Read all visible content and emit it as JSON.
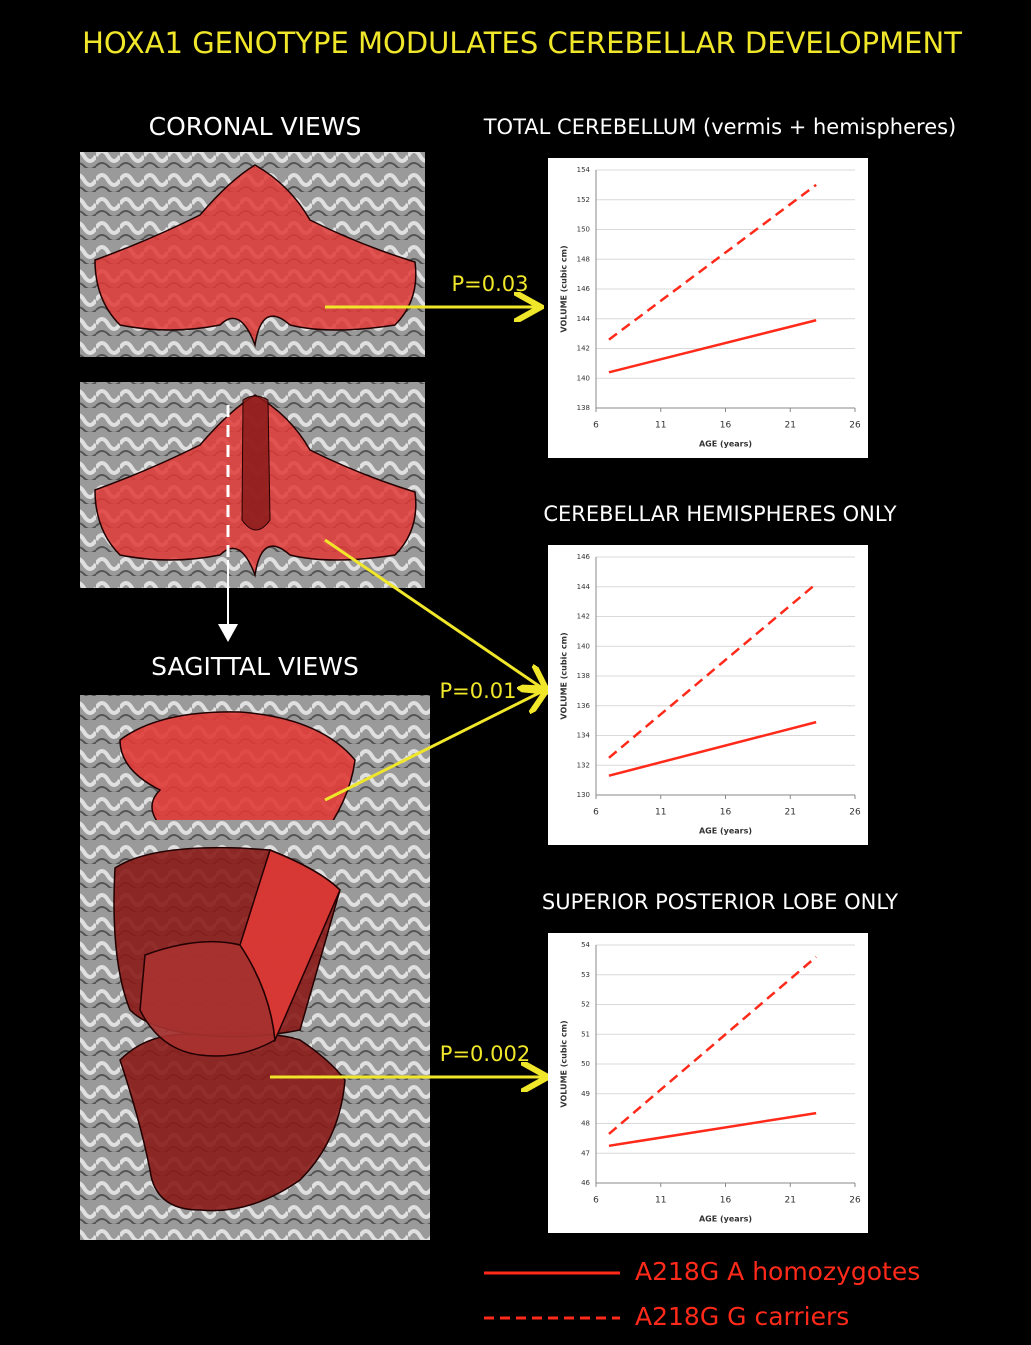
{
  "title": "HOXA1 GENOTYPE MODULATES CEREBELLAR DEVELOPMENT",
  "view_labels": [
    "CORONAL VIEWS",
    "SAGITTAL VIEWS"
  ],
  "legend": [
    {
      "name": "A218G A homozygotes",
      "color": "#ff2a1a",
      "dashed": false
    },
    {
      "name": "A218G G carriers",
      "color": "#ff2a1a",
      "dashed": true
    }
  ],
  "chart_data": [
    {
      "type": "line",
      "title": "TOTAL CEREBELLUM (vermis + hemispheres)",
      "annotation": "P=0.03",
      "x_label": "AGE (years)",
      "y_label": "VOLUME (cubic cm)",
      "x": [
        7,
        23
      ],
      "xlim": [
        6,
        26
      ],
      "xticks": [
        6,
        11,
        16,
        21,
        26
      ],
      "ylim": [
        138,
        154
      ],
      "yticks": [
        138,
        140,
        142,
        144,
        146,
        148,
        150,
        152,
        154
      ],
      "grid": true,
      "series": [
        {
          "color": "#ff2a1a",
          "dashed": false,
          "values": [
            140.4,
            143.9
          ]
        },
        {
          "color": "#ff2a1a",
          "dashed": true,
          "values": [
            142.6,
            153
          ]
        }
      ]
    },
    {
      "type": "line",
      "title": "CEREBELLAR HEMISPHERES ONLY",
      "annotation": "P=0.01",
      "x_label": "AGE (years)",
      "y_label": "VOLUME (cubic cm)",
      "x": [
        7,
        23
      ],
      "xlim": [
        6,
        26
      ],
      "xticks": [
        6,
        11,
        16,
        21,
        26
      ],
      "ylim": [
        130,
        146
      ],
      "yticks": [
        130,
        132,
        134,
        136,
        138,
        140,
        142,
        144,
        146
      ],
      "grid": true,
      "series": [
        {
          "color": "#ff2a1a",
          "dashed": false,
          "values": [
            131.3,
            134.9
          ]
        },
        {
          "color": "#ff2a1a",
          "dashed": true,
          "values": [
            132.5,
            144.2
          ]
        }
      ]
    },
    {
      "type": "line",
      "title": "SUPERIOR POSTERIOR LOBE ONLY",
      "annotation": "P=0.002",
      "x_label": "AGE (years)",
      "y_label": "VOLUME (cubic cm)",
      "x": [
        7,
        23
      ],
      "xlim": [
        6,
        26
      ],
      "xticks": [
        6,
        11,
        16,
        21,
        26
      ],
      "ylim": [
        46,
        54
      ],
      "yticks": [
        46,
        47,
        48,
        49,
        50,
        51,
        52,
        53,
        54
      ],
      "grid": true,
      "series": [
        {
          "color": "#ff2a1a",
          "dashed": false,
          "values": [
            47.25,
            48.35
          ]
        },
        {
          "color": "#ff2a1a",
          "dashed": true,
          "values": [
            47.65,
            53.6
          ]
        }
      ]
    }
  ]
}
